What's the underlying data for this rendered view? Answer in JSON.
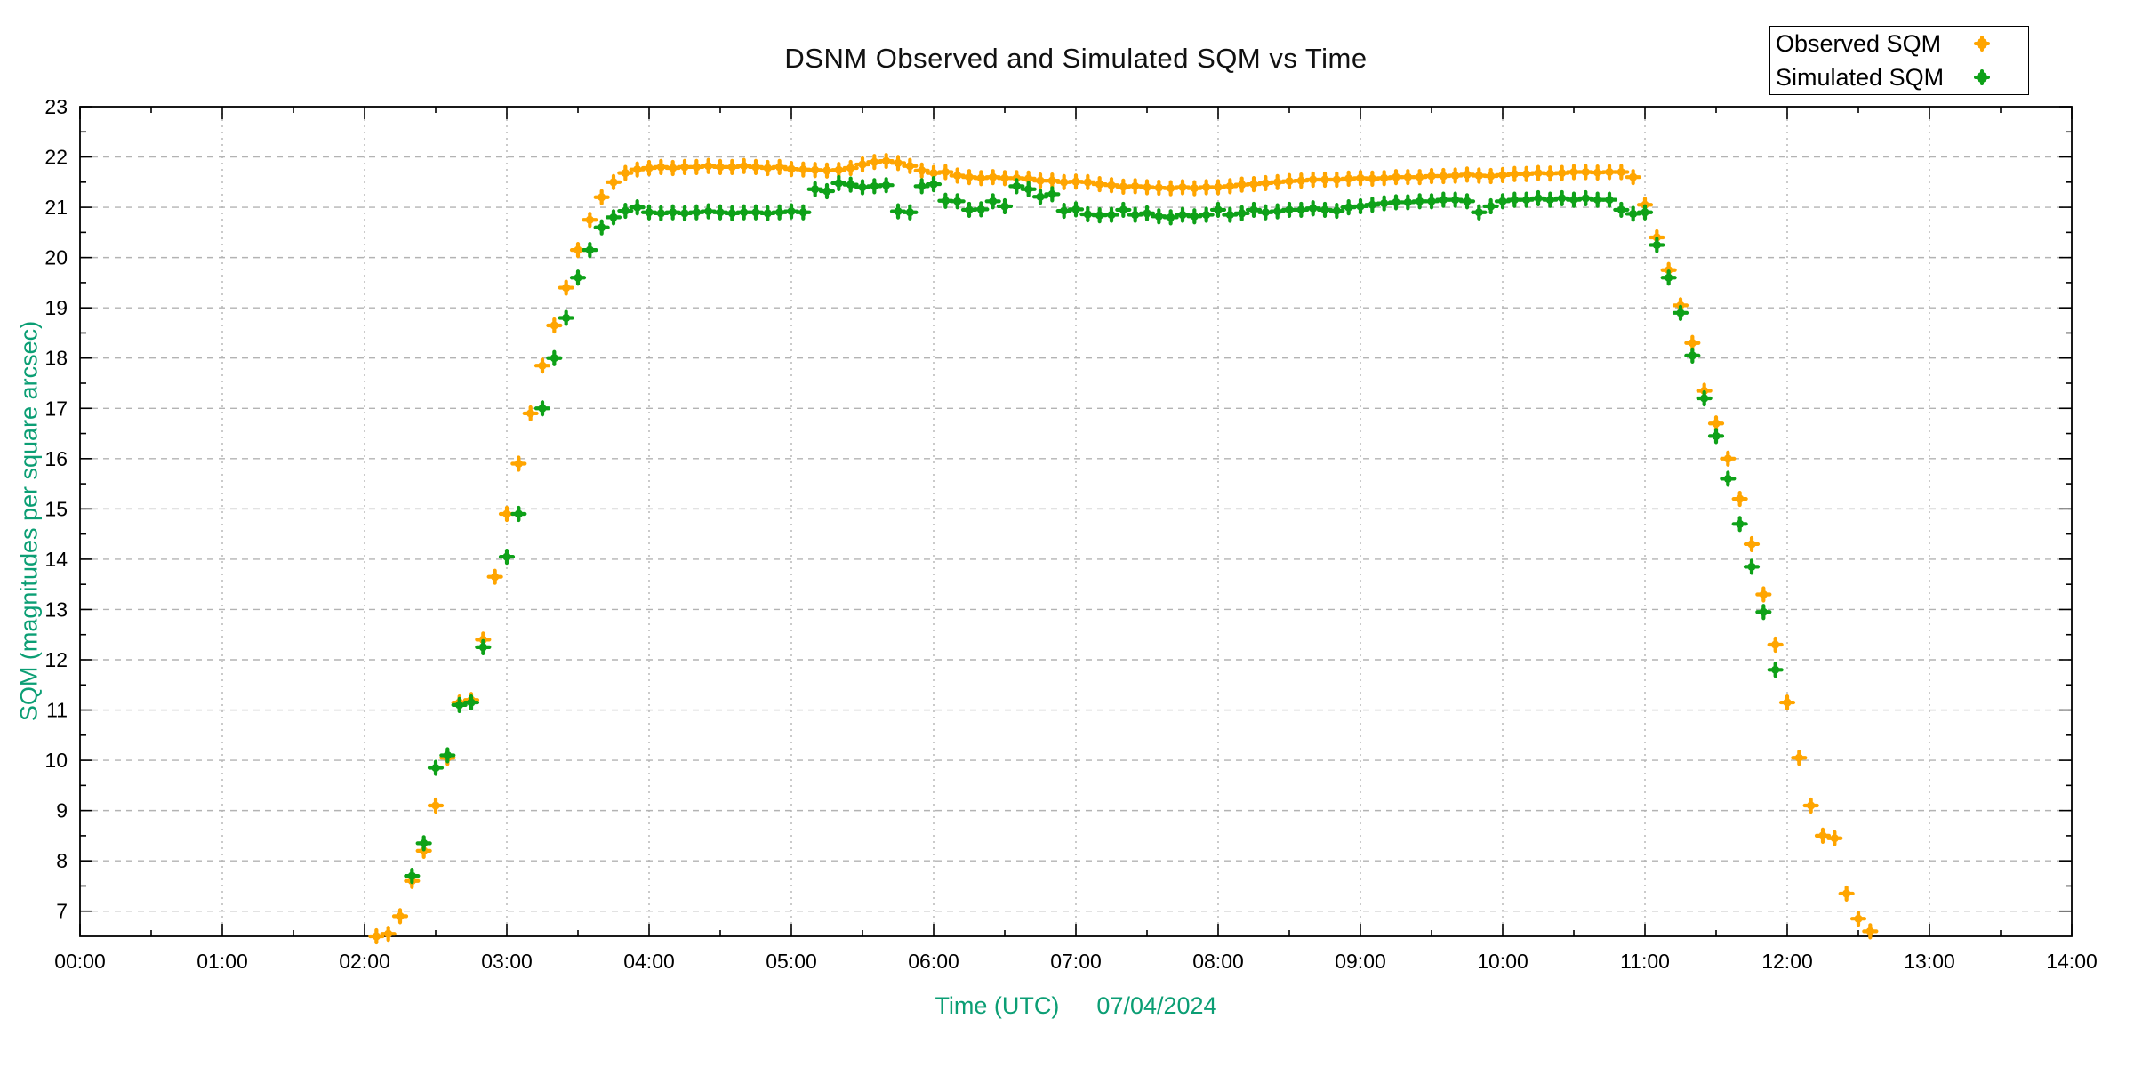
{
  "chart_data": {
    "type": "scatter",
    "title": "DSNM Observed and Simulated SQM vs Time",
    "xlabel": "Time (UTC)",
    "date_label": "07/04/2024",
    "ylabel": "SQM (magnitudes per square arcsec)",
    "axis_label_color": "#0b9e74",
    "grid": true,
    "legend_position": "top-right",
    "x_unit": "minutes after 00:00 UTC",
    "xlim_minutes": [
      0,
      840
    ],
    "x_tick_labels": [
      "00:00",
      "01:00",
      "02:00",
      "03:00",
      "04:00",
      "05:00",
      "06:00",
      "07:00",
      "08:00",
      "09:00",
      "10:00",
      "11:00",
      "12:00",
      "13:00",
      "14:00"
    ],
    "ylim": [
      6.5,
      23
    ],
    "y_ticks": [
      7,
      8,
      9,
      10,
      11,
      12,
      13,
      14,
      15,
      16,
      17,
      18,
      19,
      20,
      21,
      22,
      23
    ],
    "times_min": [
      125,
      130,
      135,
      140,
      145,
      150,
      155,
      160,
      165,
      170,
      175,
      180,
      185,
      190,
      195,
      200,
      205,
      210,
      215,
      220,
      225,
      230,
      235,
      240,
      245,
      250,
      255,
      260,
      265,
      270,
      275,
      280,
      285,
      290,
      295,
      300,
      305,
      310,
      315,
      320,
      325,
      330,
      335,
      340,
      345,
      350,
      355,
      360,
      365,
      370,
      375,
      380,
      385,
      390,
      395,
      400,
      405,
      410,
      415,
      420,
      425,
      430,
      435,
      440,
      445,
      450,
      455,
      460,
      465,
      470,
      475,
      480,
      485,
      490,
      495,
      500,
      505,
      510,
      515,
      520,
      525,
      530,
      535,
      540,
      545,
      550,
      555,
      560,
      565,
      570,
      575,
      580,
      585,
      590,
      595,
      600,
      605,
      610,
      615,
      620,
      625,
      630,
      635,
      640,
      645,
      650,
      655,
      660,
      665,
      670,
      675,
      680,
      685,
      690,
      695,
      700,
      705,
      710,
      715,
      720,
      725,
      730,
      735,
      740,
      745,
      750,
      755
    ],
    "series": [
      {
        "name": "Observed SQM",
        "color": "#FFA500",
        "values": [
          6.5,
          6.55,
          6.9,
          7.6,
          8.2,
          9.1,
          10.05,
          11.15,
          11.2,
          12.4,
          13.65,
          14.9,
          15.9,
          16.9,
          17.85,
          18.65,
          19.4,
          20.15,
          20.75,
          21.2,
          21.5,
          21.68,
          21.75,
          21.78,
          21.8,
          21.78,
          21.8,
          21.8,
          21.82,
          21.8,
          21.8,
          21.82,
          21.8,
          21.78,
          21.8,
          21.76,
          21.75,
          21.74,
          21.73,
          21.74,
          21.78,
          21.85,
          21.9,
          21.92,
          21.88,
          21.82,
          21.73,
          21.68,
          21.7,
          21.63,
          21.6,
          21.58,
          21.6,
          21.58,
          21.58,
          21.57,
          21.53,
          21.53,
          21.5,
          21.51,
          21.5,
          21.46,
          21.44,
          21.41,
          21.42,
          21.4,
          21.39,
          21.38,
          21.4,
          21.38,
          21.4,
          21.4,
          21.42,
          21.45,
          21.46,
          21.48,
          21.5,
          21.52,
          21.53,
          21.55,
          21.55,
          21.55,
          21.57,
          21.58,
          21.57,
          21.58,
          21.6,
          21.6,
          21.6,
          21.62,
          21.62,
          21.63,
          21.65,
          21.63,
          21.62,
          21.64,
          21.66,
          21.66,
          21.68,
          21.67,
          21.68,
          21.7,
          21.7,
          21.69,
          21.7,
          21.7,
          21.6,
          21.05,
          20.4,
          19.75,
          19.05,
          18.3,
          17.35,
          16.7,
          16.0,
          15.2,
          14.3,
          13.3,
          12.3,
          11.15,
          10.05,
          9.1,
          8.5,
          8.45,
          7.35,
          6.85,
          6.6
        ]
      },
      {
        "name": "Simulated SQM",
        "color": "#0ea118",
        "values": [
          null,
          null,
          null,
          7.7,
          8.35,
          9.85,
          10.1,
          11.1,
          11.15,
          12.25,
          null,
          14.05,
          14.9,
          null,
          17.0,
          18.0,
          18.8,
          19.6,
          20.15,
          20.6,
          20.8,
          20.93,
          21.0,
          20.9,
          20.88,
          20.9,
          20.88,
          20.9,
          20.92,
          20.9,
          20.88,
          20.9,
          20.9,
          20.88,
          20.9,
          20.92,
          20.9,
          21.36,
          21.32,
          21.48,
          21.45,
          21.4,
          21.42,
          21.44,
          20.92,
          20.9,
          21.42,
          21.46,
          21.13,
          21.12,
          20.95,
          20.96,
          21.12,
          21.02,
          21.42,
          21.36,
          21.21,
          21.26,
          20.93,
          20.96,
          20.86,
          20.84,
          20.85,
          20.95,
          20.85,
          20.88,
          20.82,
          20.8,
          20.85,
          20.82,
          20.85,
          20.95,
          20.85,
          20.88,
          20.95,
          20.9,
          20.92,
          20.95,
          20.95,
          20.98,
          20.95,
          20.93,
          21.0,
          21.02,
          21.05,
          21.08,
          21.1,
          21.1,
          21.12,
          21.12,
          21.15,
          21.15,
          21.12,
          20.9,
          21.02,
          21.12,
          21.15,
          21.15,
          21.18,
          21.15,
          21.18,
          21.15,
          21.18,
          21.15,
          21.15,
          20.95,
          20.87,
          20.9,
          20.25,
          19.6,
          18.9,
          18.05,
          17.2,
          16.45,
          15.6,
          14.7,
          13.85,
          12.95,
          11.8,
          null,
          null,
          null,
          null,
          null,
          null,
          null,
          null
        ]
      }
    ]
  },
  "legend": {
    "items": [
      {
        "label": "Observed SQM"
      },
      {
        "label": "Simulated SQM"
      }
    ]
  }
}
